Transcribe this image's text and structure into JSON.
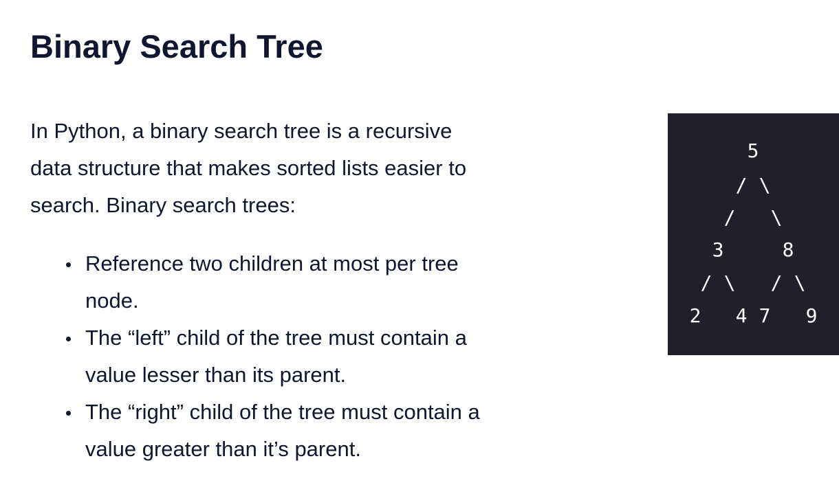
{
  "title": "Binary Search Tree",
  "intro_lines": [
    "In Python, a binary search tree is a recursive",
    "data structure that makes sorted lists easier to",
    "search. Binary search trees:"
  ],
  "bullets": [
    {
      "lines": [
        "Reference two children at most per tree",
        "node."
      ]
    },
    {
      "lines": [
        "The “left” child of the tree must contain a",
        "value lesser than its parent."
      ]
    },
    {
      "lines": [
        "The “right” child of the tree must contain a",
        "value greater than it’s parent."
      ]
    }
  ],
  "tree": {
    "root": "5",
    "left": "3",
    "right": "8",
    "left_left": "2",
    "left_right": "4",
    "right_left": "7",
    "right_right": "9",
    "slash": "/",
    "backslash": "\\"
  },
  "colors": {
    "text": "#10162f",
    "code_background": "#211f2c",
    "code_text": "#ffffff"
  }
}
